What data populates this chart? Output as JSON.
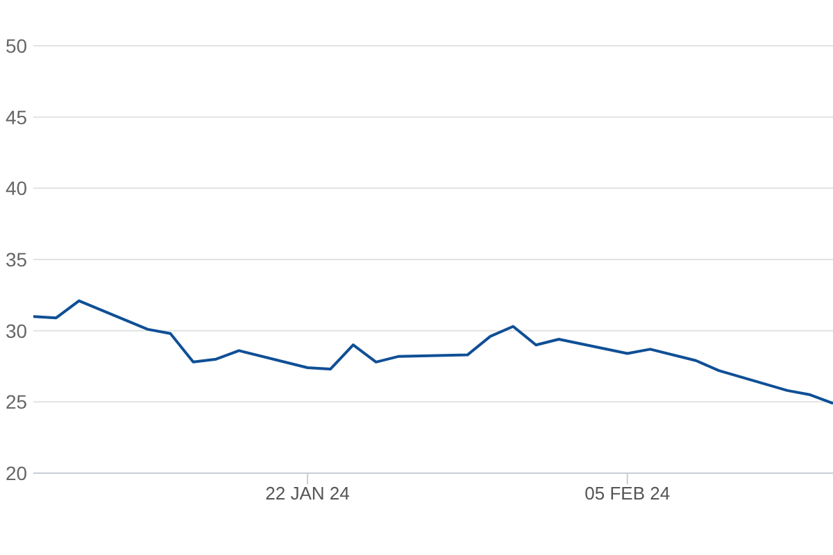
{
  "chart_data": {
    "type": "line",
    "x": [
      "2024-01-10",
      "2024-01-11",
      "2024-01-12",
      "2024-01-15",
      "2024-01-16",
      "2024-01-17",
      "2024-01-18",
      "2024-01-19",
      "2024-01-22",
      "2024-01-23",
      "2024-01-24",
      "2024-01-25",
      "2024-01-26",
      "2024-01-29",
      "2024-01-30",
      "2024-01-31",
      "2024-02-01",
      "2024-02-02",
      "2024-02-05",
      "2024-02-06",
      "2024-02-08",
      "2024-02-09",
      "2024-02-12",
      "2024-02-13",
      "2024-02-14"
    ],
    "series": [
      {
        "color": "#0f4f96",
        "values": [
          31.0,
          30.9,
          32.1,
          30.1,
          29.8,
          27.8,
          28.0,
          28.6,
          27.4,
          27.3,
          29.0,
          27.8,
          28.2,
          28.3,
          29.6,
          30.3,
          29.0,
          29.4,
          28.4,
          28.7,
          27.9,
          27.2,
          25.8,
          25.5,
          24.9
        ]
      }
    ],
    "xlim": [
      "2024-01-10",
      "2024-02-14"
    ],
    "xticks": [
      {
        "value": "2024-01-22",
        "label": "22 JAN 24"
      },
      {
        "value": "2024-02-05",
        "label": "05 FEB 24"
      }
    ],
    "ylim": [
      20,
      50
    ],
    "yticks": [
      20,
      25,
      30,
      35,
      40,
      45,
      50
    ],
    "grid": "y"
  }
}
